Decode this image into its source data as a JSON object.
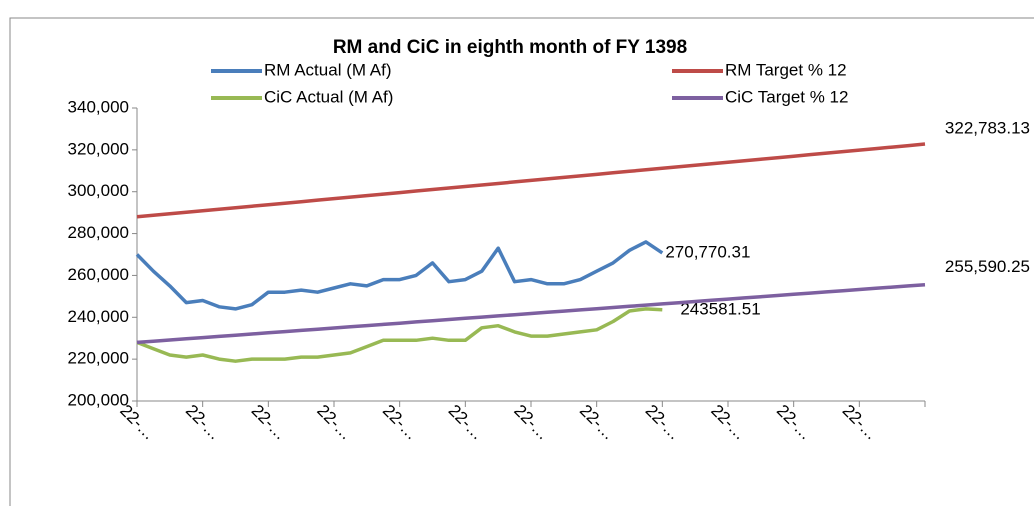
{
  "chart_data": {
    "type": "line",
    "title": "RM and CiC  in eighth month of  FY 1398",
    "categories": [
      "22-…",
      null,
      null,
      null,
      "22-…",
      null,
      null,
      null,
      "22-…",
      null,
      null,
      null,
      "22-…",
      null,
      null,
      null,
      "22-…",
      null,
      null,
      null,
      "22-…",
      null,
      null,
      null,
      "22-…",
      null,
      null,
      null,
      "22-…",
      null,
      null,
      null,
      "22-…",
      null,
      null,
      null,
      "22-…",
      null,
      null,
      null,
      "22-…",
      null,
      null,
      null,
      "22-…",
      null,
      null,
      null,
      null
    ],
    "ylim": [
      200000,
      340000
    ],
    "yticks": [
      {
        "value": 200000,
        "label": "200,000"
      },
      {
        "value": 220000,
        "label": "220,000"
      },
      {
        "value": 240000,
        "label": "240,000"
      },
      {
        "value": 260000,
        "label": "260,000"
      },
      {
        "value": 280000,
        "label": "280,000"
      },
      {
        "value": 300000,
        "label": "300,000"
      },
      {
        "value": 320000,
        "label": "320,000"
      },
      {
        "value": 340000,
        "label": "340,000"
      }
    ],
    "grid": false,
    "series": [
      {
        "name": "RM Actual (M Af)",
        "color": "#4a7ebb",
        "values": [
          270000,
          262000,
          255000,
          247000,
          248000,
          245000,
          244000,
          246000,
          252000,
          252000,
          253000,
          252000,
          254000,
          256000,
          255000,
          258000,
          258000,
          260000,
          266000,
          257000,
          258000,
          262000,
          273000,
          257000,
          258000,
          256000,
          256000,
          258000,
          262000,
          266000,
          272000,
          276000,
          270770.31,
          null,
          null,
          null,
          null,
          null,
          null,
          null,
          null,
          null,
          null,
          null,
          null,
          null,
          null,
          null,
          null
        ],
        "value_labels": [
          null,
          null,
          null,
          null,
          null,
          null,
          null,
          null,
          null,
          null,
          null,
          null,
          null,
          null,
          null,
          null,
          null,
          null,
          null,
          null,
          null,
          null,
          null,
          null,
          null,
          null,
          null,
          null,
          null,
          null,
          null,
          null,
          "270,770.31",
          null,
          null,
          null,
          null,
          null,
          null,
          null,
          null,
          null,
          null,
          null,
          null,
          null,
          null,
          null,
          null
        ]
      },
      {
        "name": "RM Target  % 12",
        "color": "#be4b48",
        "values": [
          288000,
          288725,
          289449,
          290174,
          290899,
          291623,
          292348,
          293073,
          293797,
          294522,
          295247,
          295972,
          296696,
          297421,
          298146,
          298870,
          299595,
          300319,
          301044,
          301769,
          302493,
          303218,
          303943,
          304667,
          305392,
          306116,
          306841,
          307566,
          308290,
          309015,
          309740,
          310464,
          311189,
          311914,
          312638,
          313363,
          314087,
          314812,
          315537,
          316261,
          316986,
          317711,
          318435,
          319160,
          319885,
          320609,
          321334,
          322058,
          322783.13
        ],
        "value_labels": [
          null,
          null,
          null,
          null,
          null,
          null,
          null,
          null,
          null,
          null,
          null,
          null,
          null,
          null,
          null,
          null,
          null,
          null,
          null,
          null,
          null,
          null,
          null,
          null,
          null,
          null,
          null,
          null,
          null,
          null,
          null,
          null,
          null,
          null,
          null,
          null,
          null,
          null,
          null,
          null,
          null,
          null,
          null,
          null,
          null,
          null,
          null,
          null,
          "322,783.13"
        ]
      },
      {
        "name": "CiC Actual (M Af)",
        "color": "#98b954",
        "values": [
          228000,
          225000,
          222000,
          221000,
          222000,
          220000,
          219000,
          220000,
          220000,
          220000,
          221000,
          221000,
          222000,
          223000,
          226000,
          229000,
          229000,
          229000,
          230000,
          229000,
          229000,
          235000,
          236000,
          233000,
          231000,
          231000,
          232000,
          233000,
          234000,
          238000,
          243000,
          244000,
          243581.51,
          null,
          null,
          null,
          null,
          null,
          null,
          null,
          null,
          null,
          null,
          null,
          null,
          null,
          null,
          null,
          null
        ],
        "value_labels": [
          null,
          null,
          null,
          null,
          null,
          null,
          null,
          null,
          null,
          null,
          null,
          null,
          null,
          null,
          null,
          null,
          null,
          null,
          null,
          null,
          null,
          null,
          null,
          null,
          null,
          null,
          null,
          null,
          null,
          null,
          null,
          null,
          "243581.51",
          null,
          null,
          null,
          null,
          null,
          null,
          null,
          null,
          null,
          null,
          null,
          null,
          null,
          null,
          null,
          null
        ]
      },
      {
        "name": "CiC Target  % 12",
        "color": "#7d60a0",
        "values": [
          228000,
          228575,
          229150,
          229724,
          230299,
          230874,
          231449,
          232024,
          232598,
          233173,
          233748,
          234323,
          234898,
          235472,
          236047,
          236622,
          237197,
          237772,
          238346,
          238921,
          239496,
          240071,
          240646,
          241220,
          241795,
          242370,
          242945,
          243520,
          244094,
          244669,
          245244,
          245819,
          246394,
          246968,
          247543,
          248118,
          248693,
          249268,
          249842,
          250417,
          250992,
          251567,
          252142,
          252716,
          253291,
          253866,
          254441,
          255016,
          255590.25
        ],
        "value_labels": [
          null,
          null,
          null,
          null,
          null,
          null,
          null,
          null,
          null,
          null,
          null,
          null,
          null,
          null,
          null,
          null,
          null,
          null,
          null,
          null,
          null,
          null,
          null,
          null,
          null,
          null,
          null,
          null,
          null,
          null,
          null,
          null,
          null,
          null,
          null,
          null,
          null,
          null,
          null,
          null,
          null,
          null,
          null,
          null,
          null,
          null,
          null,
          null,
          "255,590.25"
        ]
      }
    ]
  }
}
